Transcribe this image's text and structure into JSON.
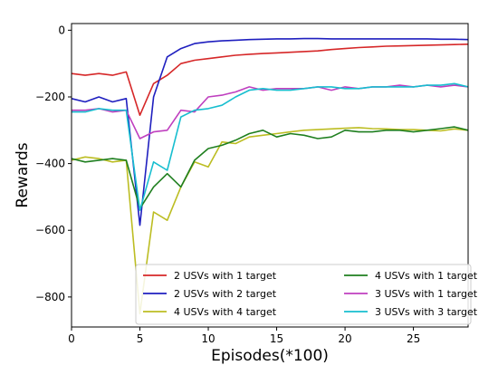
{
  "chart_data": {
    "type": "line",
    "title": "",
    "xlabel": "Episodes(*100)",
    "ylabel": "Rewards",
    "xlim": [
      0,
      29
    ],
    "ylim": [
      -890,
      20
    ],
    "xticks": [
      0,
      5,
      10,
      15,
      20,
      25
    ],
    "yticks": [
      0,
      -200,
      -400,
      -600,
      -800
    ],
    "grid": false,
    "legend_position": "bottom",
    "legend_columns": 2,
    "x": [
      0,
      1,
      2,
      3,
      4,
      5,
      6,
      7,
      8,
      9,
      10,
      11,
      12,
      13,
      14,
      15,
      16,
      17,
      18,
      19,
      20,
      21,
      22,
      23,
      24,
      25,
      26,
      27,
      28,
      29
    ],
    "series": [
      {
        "name": "2 USVs with 1 target",
        "color": "#d62728",
        "values": [
          -130,
          -135,
          -130,
          -135,
          -125,
          -255,
          -160,
          -135,
          -100,
          -90,
          -85,
          -80,
          -75,
          -72,
          -70,
          -68,
          -66,
          -64,
          -62,
          -58,
          -55,
          -52,
          -50,
          -48,
          -47,
          -46,
          -45,
          -44,
          -43,
          -42
        ]
      },
      {
        "name": "2 USVs with 2 target",
        "color": "#1f1fbf",
        "values": [
          -205,
          -215,
          -200,
          -215,
          -205,
          -585,
          -200,
          -80,
          -55,
          -40,
          -35,
          -32,
          -30,
          -28,
          -27,
          -26,
          -26,
          -25,
          -25,
          -26,
          -26,
          -26,
          -26,
          -26,
          -26,
          -26,
          -26,
          -27,
          -27,
          -28
        ]
      },
      {
        "name": "4 USVs with 4 target",
        "color": "#bcbd22",
        "values": [
          -390,
          -380,
          -385,
          -395,
          -390,
          -850,
          -545,
          -570,
          -470,
          -395,
          -410,
          -335,
          -340,
          -320,
          -315,
          -310,
          -305,
          -300,
          -298,
          -296,
          -294,
          -292,
          -295,
          -296,
          -298,
          -298,
          -300,
          -302,
          -296,
          -300
        ]
      },
      {
        "name": "4 USVs with 1 target",
        "color": "#1f7f1f",
        "values": [
          -385,
          -395,
          -390,
          -385,
          -390,
          -535,
          -470,
          -430,
          -470,
          -390,
          -355,
          -345,
          -330,
          -310,
          -300,
          -320,
          -310,
          -315,
          -325,
          -320,
          -300,
          -305,
          -305,
          -300,
          -300,
          -305,
          -300,
          -295,
          -290,
          -300
        ]
      },
      {
        "name": "3 USVs with 1 target",
        "color": "#bf3fbf",
        "values": [
          -240,
          -240,
          -235,
          -245,
          -240,
          -325,
          -305,
          -300,
          -240,
          -245,
          -200,
          -195,
          -185,
          -170,
          -180,
          -175,
          -175,
          -175,
          -170,
          -180,
          -170,
          -175,
          -170,
          -170,
          -165,
          -170,
          -165,
          -170,
          -165,
          -170
        ]
      },
      {
        "name": "3 USVs with 3 target",
        "color": "#17becf",
        "values": [
          -245,
          -245,
          -235,
          -240,
          -240,
          -540,
          -395,
          -420,
          -260,
          -240,
          -235,
          -225,
          -200,
          -180,
          -175,
          -180,
          -180,
          -175,
          -170,
          -170,
          -175,
          -175,
          -170,
          -170,
          -170,
          -170,
          -165,
          -165,
          -160,
          -170
        ]
      }
    ]
  }
}
